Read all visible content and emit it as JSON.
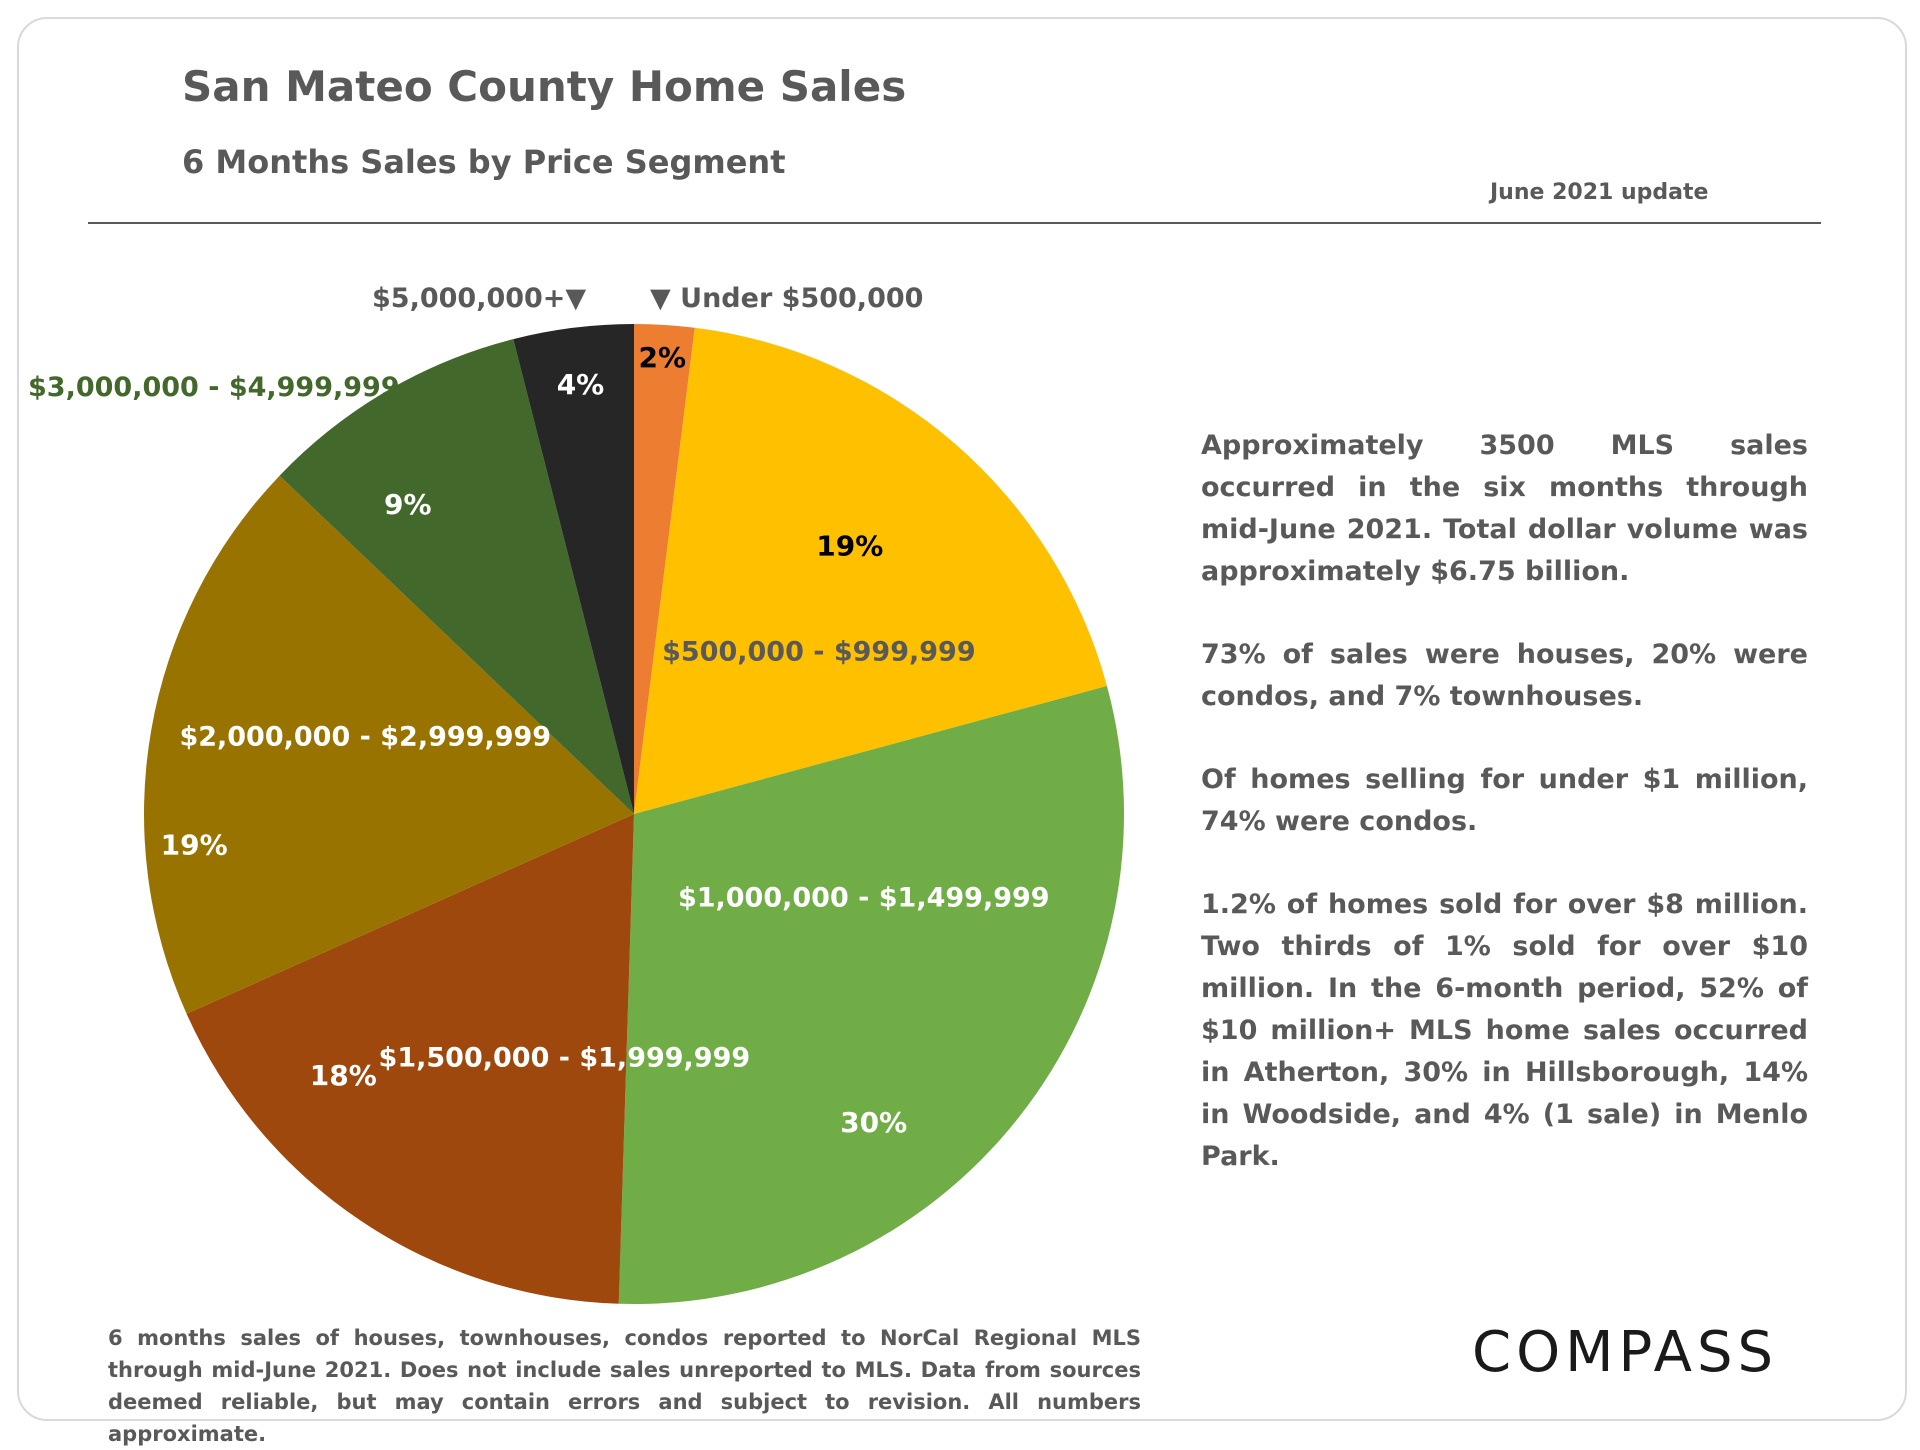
{
  "header": {
    "title": "San Mateo County Home Sales",
    "subtitle": "6 Months Sales by Price Segment",
    "update": "June 2021 update"
  },
  "chart_data": {
    "type": "pie",
    "title": "6 Months Sales by Price Segment",
    "slices": [
      {
        "name": "Under $500,000",
        "value": 2,
        "label": "2%",
        "color": "#ED7D31",
        "pct_color": "#000000",
        "name_color": "#595959"
      },
      {
        "name": "$500,000 - $999,999",
        "value": 19,
        "label": "19%",
        "color": "#FFC000",
        "pct_color": "#000000",
        "name_color": "#595959"
      },
      {
        "name": "$1,000,000 - $1,499,999",
        "value": 30,
        "label": "30%",
        "color": "#70AD47",
        "pct_color": "#ffffff",
        "name_color": "#ffffff"
      },
      {
        "name": "$1,500,000 - $1,999,999",
        "value": 18,
        "label": "18%",
        "color": "#9E480E",
        "pct_color": "#ffffff",
        "name_color": "#ffffff"
      },
      {
        "name": "$2,000,000 - $2,999,999",
        "value": 19,
        "label": "19%",
        "color": "#997300",
        "pct_color": "#ffffff",
        "name_color": "#ffffff"
      },
      {
        "name": "$3,000,000 - $4,999,999",
        "value": 9,
        "label": "9%",
        "color": "#43682B",
        "pct_color": "#ffffff",
        "name_color": "#43682B"
      },
      {
        "name": "$5,000,000+",
        "value": 4,
        "label": "4%",
        "color": "#262626",
        "pct_color": "#ffffff",
        "name_color": "#595959"
      }
    ],
    "external_labels": {
      "five_million": "$5,000,000+▼",
      "under_500k": "▼ Under $500,000",
      "three_million": "$3,000,000 - $4,999,999"
    }
  },
  "notes": [
    "Approximately 3500 MLS sales occurred in the six months through mid-June 2021. Total dollar volume was approximately $6.75 billion.",
    "73% of sales were houses, 20% were condos, and 7% townhouses.",
    "Of homes selling for under $1 million, 74% were condos.",
    "1.2% of homes sold for over $8 million. Two thirds of 1% sold for over $10 million. In the 6-month period, 52% of $10 million+ MLS home sales occurred in Atherton, 30% in Hillsborough, 14% in Woodside, and 4% (1 sale) in Menlo Park."
  ],
  "footnote": "6 months sales of houses, townhouses, condos reported to NorCal Regional MLS through mid-June 2021. Does not include sales unreported to MLS. Data from sources deemed reliable, but may contain errors and subject to revision. All numbers approximate.",
  "logo": "COMPASS"
}
